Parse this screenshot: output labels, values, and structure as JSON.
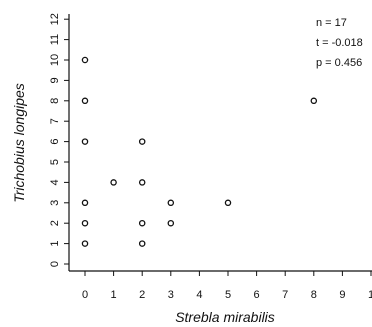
{
  "chart_data": {
    "type": "scatter",
    "title": "",
    "xlabel": "Strebla mirabilis",
    "ylabel": "Trichobius longipes",
    "xlim": [
      -0.5,
      10
    ],
    "ylim": [
      -0.5,
      12.5
    ],
    "x_ticks": [
      "0",
      "1",
      "2",
      "3",
      "4",
      "5",
      "6",
      "7",
      "8",
      "9",
      "1"
    ],
    "y_ticks": [
      "0",
      "1",
      "2",
      "3",
      "4",
      "5",
      "6",
      "7",
      "8",
      "9",
      "10",
      "11",
      "12"
    ],
    "grid": false,
    "legend": "none",
    "points": [
      {
        "x": 0,
        "y": 10
      },
      {
        "x": 0,
        "y": 8
      },
      {
        "x": 0,
        "y": 6
      },
      {
        "x": 0,
        "y": 3
      },
      {
        "x": 0,
        "y": 2
      },
      {
        "x": 0,
        "y": 1
      },
      {
        "x": 1,
        "y": 4
      },
      {
        "x": 2,
        "y": 6
      },
      {
        "x": 2,
        "y": 4
      },
      {
        "x": 2,
        "y": 2
      },
      {
        "x": 2,
        "y": 1
      },
      {
        "x": 3,
        "y": 3
      },
      {
        "x": 3,
        "y": 2
      },
      {
        "x": 5,
        "y": 3
      },
      {
        "x": 8,
        "y": 8
      }
    ],
    "annotations": [
      "n = 17",
      "t = -0.018",
      "p = 0.456"
    ]
  }
}
